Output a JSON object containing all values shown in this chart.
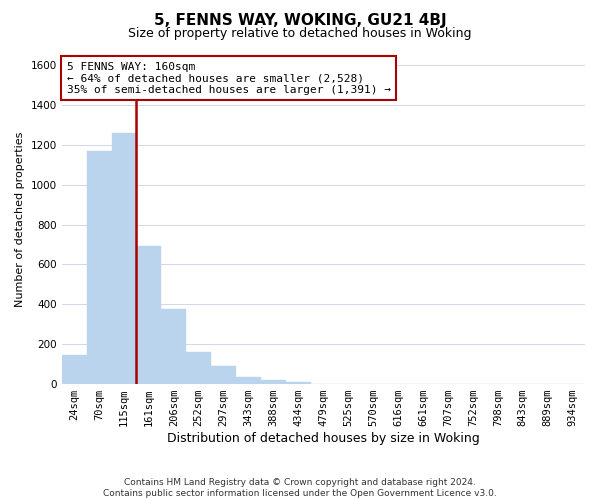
{
  "title": "5, FENNS WAY, WOKING, GU21 4BJ",
  "subtitle": "Size of property relative to detached houses in Woking",
  "xlabel": "Distribution of detached houses by size in Woking",
  "ylabel": "Number of detached properties",
  "footer_line1": "Contains HM Land Registry data © Crown copyright and database right 2024.",
  "footer_line2": "Contains public sector information licensed under the Open Government Licence v3.0.",
  "bar_labels": [
    "24sqm",
    "70sqm",
    "115sqm",
    "161sqm",
    "206sqm",
    "252sqm",
    "297sqm",
    "343sqm",
    "388sqm",
    "434sqm",
    "479sqm",
    "525sqm",
    "570sqm",
    "616sqm",
    "661sqm",
    "707sqm",
    "752sqm",
    "798sqm",
    "843sqm",
    "889sqm",
    "934sqm"
  ],
  "bar_values": [
    148,
    1170,
    1260,
    690,
    375,
    160,
    90,
    35,
    20,
    10,
    0,
    0,
    0,
    0,
    0,
    0,
    0,
    0,
    0,
    0,
    0
  ],
  "bar_color": "#bad4ee",
  "vline_color": "#aa0000",
  "vline_pos": 2.5,
  "annotation_text": "5 FENNS WAY: 160sqm\n← 64% of detached houses are smaller (2,528)\n35% of semi-detached houses are larger (1,391) →",
  "annotation_box_facecolor": "#ffffff",
  "annotation_box_edgecolor": "#aa0000",
  "ylim": [
    0,
    1650
  ],
  "yticks": [
    0,
    200,
    400,
    600,
    800,
    1000,
    1200,
    1400,
    1600
  ],
  "background_color": "#ffffff",
  "grid_color": "#d0d8e8",
  "title_fontsize": 11,
  "subtitle_fontsize": 9,
  "xlabel_fontsize": 9,
  "ylabel_fontsize": 8,
  "tick_fontsize": 7.5,
  "annotation_fontsize": 8,
  "footer_fontsize": 6.5
}
